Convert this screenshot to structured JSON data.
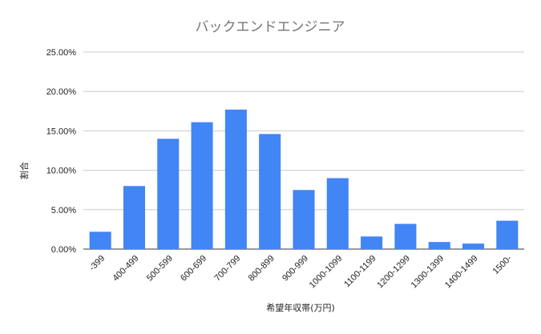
{
  "chart_data": {
    "type": "bar",
    "title": "バックエンドエンジニア",
    "xlabel": "希望年収帯(万円)",
    "ylabel": "割合",
    "categories": [
      "-399",
      "400-499",
      "500-599",
      "600-699",
      "700-799",
      "800-899",
      "900-999",
      "1000-1099",
      "1100-1199",
      "1200-1299",
      "1300-1399",
      "1400-1499",
      "1500-"
    ],
    "values": [
      2.2,
      8.0,
      14.0,
      16.1,
      17.7,
      14.6,
      7.5,
      9.0,
      1.6,
      3.2,
      0.9,
      0.7,
      3.6
    ],
    "ylim": [
      0,
      25
    ],
    "yticks": [
      "0.00%",
      "5.00%",
      "10.00%",
      "15.00%",
      "20.00%",
      "25.00%"
    ],
    "ytick_values": [
      0,
      5,
      10,
      15,
      20,
      25
    ],
    "grid": true,
    "legend": "none",
    "bar_color": "#4285f4"
  }
}
